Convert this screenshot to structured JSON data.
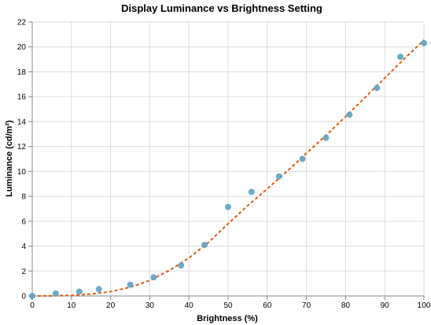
{
  "chart_data": {
    "type": "scatter",
    "title": "Display Luminance vs Brightness Setting",
    "xlabel": "Brightness (%)",
    "ylabel": "Luminance (cd/m²)",
    "xlim": [
      0,
      100
    ],
    "ylim": [
      0,
      22
    ],
    "x_ticks": [
      0,
      10,
      20,
      30,
      40,
      50,
      60,
      70,
      80,
      90,
      100
    ],
    "y_ticks": [
      0,
      2,
      4,
      6,
      8,
      10,
      12,
      14,
      16,
      18,
      20,
      22
    ],
    "grid": true,
    "series": [
      {
        "type": "scatter",
        "color": "#5ba3c4",
        "x": [
          0,
          6,
          12,
          17,
          25,
          31,
          38,
          44,
          50,
          56,
          63,
          69,
          75,
          81,
          88,
          94,
          100
        ],
        "y": [
          0.0,
          0.2,
          0.35,
          0.55,
          0.9,
          1.5,
          2.45,
          4.1,
          7.15,
          8.35,
          9.6,
          11.0,
          12.7,
          14.55,
          16.7,
          19.2,
          20.3
        ]
      },
      {
        "type": "line",
        "style": "dashed",
        "color": "#e8590c",
        "x": [
          0,
          5,
          10,
          15,
          20,
          25,
          30,
          35,
          40,
          45,
          50,
          55,
          60,
          65,
          70,
          75,
          80,
          85,
          90,
          95,
          100
        ],
        "y": [
          0.0,
          0.01,
          0.05,
          0.15,
          0.35,
          0.7,
          1.25,
          2.05,
          3.05,
          4.3,
          5.8,
          7.25,
          8.6,
          10.0,
          11.45,
          12.9,
          14.4,
          15.95,
          17.5,
          19.05,
          20.55
        ]
      }
    ]
  }
}
